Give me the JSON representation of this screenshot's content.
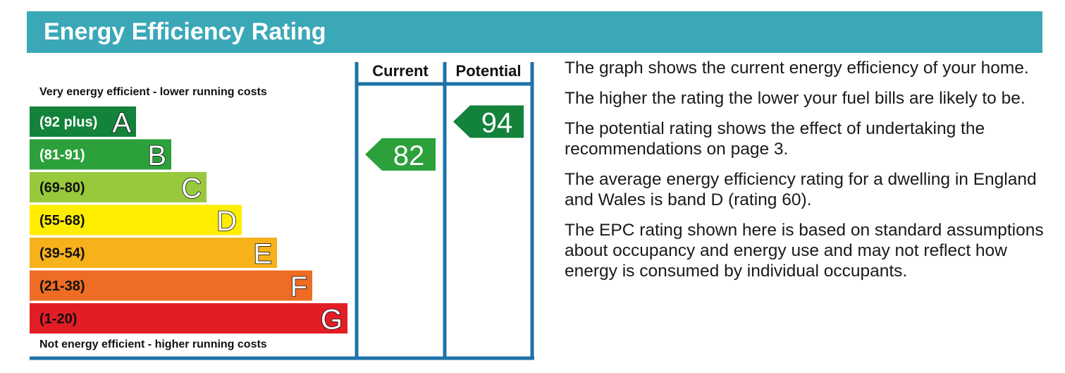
{
  "title": "Energy Efficiency Rating",
  "chart_data": {
    "type": "bar",
    "top_caption": "Very energy efficient - lower running costs",
    "bottom_caption": "Not energy efficient - higher running costs",
    "columns": [
      "Current",
      "Potential"
    ],
    "bands": [
      {
        "letter": "A",
        "range": "(92 plus)",
        "color": "#13823b",
        "dark_text": false
      },
      {
        "letter": "B",
        "range": "(81-91)",
        "color": "#2ca03a",
        "dark_text": false
      },
      {
        "letter": "C",
        "range": "(69-80)",
        "color": "#98c93c",
        "dark_text": true
      },
      {
        "letter": "D",
        "range": "(55-68)",
        "color": "#ffed00",
        "dark_text": true
      },
      {
        "letter": "E",
        "range": "(39-54)",
        "color": "#f7b11b",
        "dark_text": true
      },
      {
        "letter": "F",
        "range": "(21-38)",
        "color": "#ee6c23",
        "dark_text": true
      },
      {
        "letter": "G",
        "range": "(1-20)",
        "color": "#e31d25",
        "dark_text": true
      }
    ],
    "current": {
      "value": 82,
      "band": "B",
      "color": "#2ca03a"
    },
    "potential": {
      "value": 94,
      "band": "A",
      "color": "#13823b"
    },
    "frame_color": "#1e73a8"
  },
  "description": [
    "The graph shows the current energy efficiency of your home.",
    "The higher the rating the lower your fuel bills are likely to be.",
    "The potential rating shows the effect of undertaking the recommendations on page 3.",
    "The average energy efficiency rating for a dwelling in England and Wales is band D (rating 60).",
    "The EPC rating shown here is based on standard assumptions about occupancy and energy use and may not reflect how energy is consumed by individual occupants."
  ]
}
